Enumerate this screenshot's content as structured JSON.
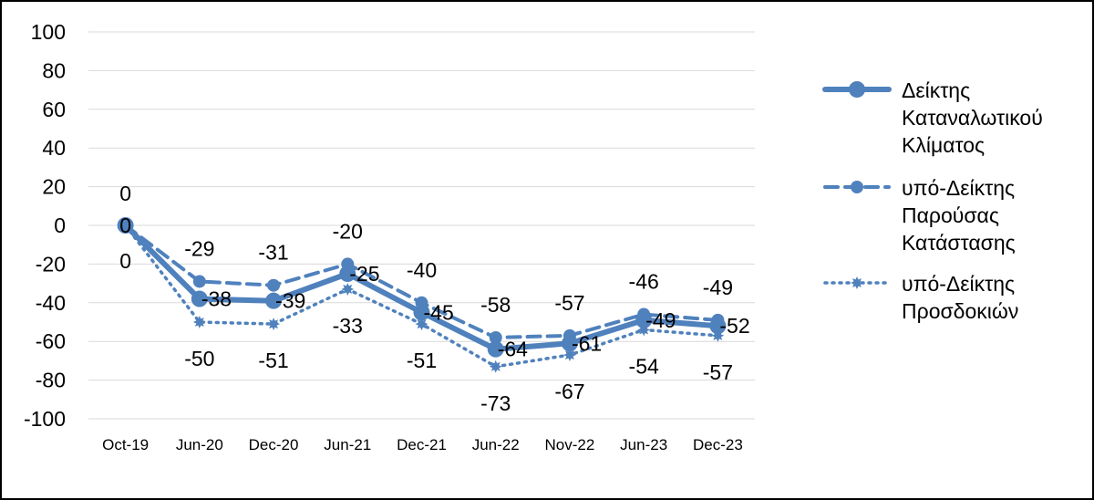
{
  "chart_data": {
    "type": "line",
    "categories": [
      "Oct-19",
      "Jun-20",
      "Dec-20",
      "Jun-21",
      "Dec-21",
      "Jun-22",
      "Nov-22",
      "Jun-23",
      "Dec-23"
    ],
    "ylim": [
      -100,
      100
    ],
    "yticks": [
      100,
      80,
      60,
      40,
      20,
      0,
      -20,
      -40,
      -60,
      -80,
      -100
    ],
    "grid": true,
    "legend_position": "right",
    "color": "#4f81bd",
    "series": [
      {
        "name": "Δείκτης Καταναλωτικού Κλίματος",
        "legend_lines": [
          "Δείκτης",
          "Καταναλωτικού",
          "Κλίματος"
        ],
        "style": "solid",
        "values": [
          0,
          -38,
          -39,
          -25,
          -45,
          -64,
          -61,
          -49,
          -52
        ]
      },
      {
        "name": "υπό-Δείκτης Παρούσας Κατάστασης",
        "legend_lines": [
          "υπό-Δείκτης",
          "Παρούσας",
          "Κατάστασης"
        ],
        "style": "dashed",
        "values": [
          0,
          -29,
          -31,
          -20,
          -40,
          -58,
          -57,
          -46,
          -49
        ]
      },
      {
        "name": "υπό-Δείκτης Προσδοκιών",
        "legend_lines": [
          "υπό-Δείκτης",
          "Προσδοκιών"
        ],
        "style": "dotted",
        "values": [
          0,
          -50,
          -51,
          -33,
          -51,
          -73,
          -67,
          -54,
          -57
        ]
      }
    ]
  }
}
